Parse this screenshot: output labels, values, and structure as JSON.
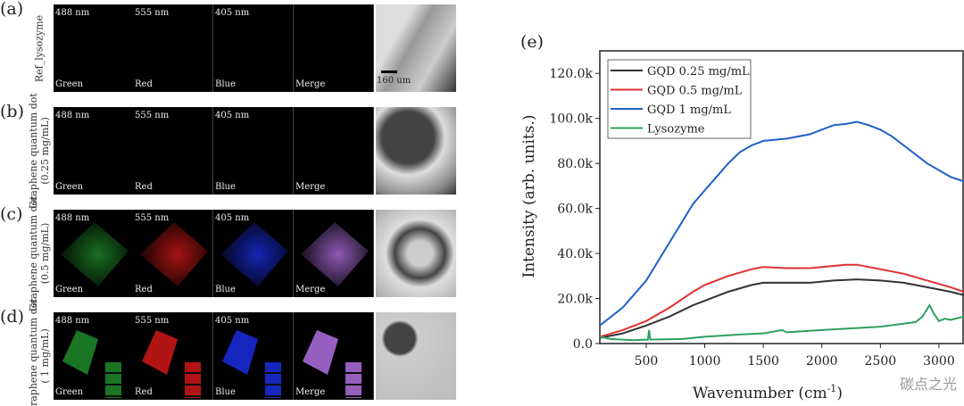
{
  "panels": [
    {
      "letter": "(a)",
      "row_label": [
        "Ref_lysozyme"
      ],
      "tiles": [
        {
          "top": "488 nm",
          "bottom": "Green"
        },
        {
          "top": "555 nm",
          "bottom": "Red"
        },
        {
          "top": "405 nm",
          "bottom": "Blue"
        },
        {
          "top": "",
          "bottom": "Merge"
        }
      ],
      "scale_bar": "160 um",
      "intensity": 0
    },
    {
      "letter": "(b)",
      "row_label": [
        "Graphene quantum dot",
        "(0.25 mg/mL)"
      ],
      "tiles": [
        {
          "top": "488 nm",
          "bottom": "Green"
        },
        {
          "top": "555 nm",
          "bottom": "Red"
        },
        {
          "top": "405 nm",
          "bottom": "Blue"
        },
        {
          "top": "",
          "bottom": "Merge"
        }
      ],
      "intensity": 0
    },
    {
      "letter": "(c)",
      "row_label": [
        "Graphene quantum dot",
        "(0.5 mg/mL)"
      ],
      "tiles": [
        {
          "top": "488 nm",
          "bottom": "Green"
        },
        {
          "top": "555 nm",
          "bottom": "Red"
        },
        {
          "top": "405 nm",
          "bottom": "Blue"
        },
        {
          "top": "",
          "bottom": "Merge"
        }
      ],
      "intensity": 0.5
    },
    {
      "letter": "(d)",
      "row_label": [
        "Graphene quantum dot",
        "( 1 mg/mL)"
      ],
      "tiles": [
        {
          "top": "488 nm",
          "bottom": "Green"
        },
        {
          "top": "555 nm",
          "bottom": "Red"
        },
        {
          "top": "405 nm",
          "bottom": "Blue"
        },
        {
          "top": "",
          "bottom": "Merge"
        }
      ],
      "intensity": 1
    }
  ],
  "channel_colors": [
    "#1f8a2a",
    "#d01818",
    "#1a2ee0",
    "#b070e0"
  ],
  "watermark": "碳点之光",
  "chart_data": {
    "type": "line",
    "panel_letter": "(e)",
    "xlabel": "Wavenumber (cm",
    "xlabel_sup": "-1",
    "xlabel_end": ")",
    "ylabel": "Intensity (arb. units.)",
    "xlim": [
      104,
      3214
    ],
    "ylim": [
      0,
      130000
    ],
    "xticks": [
      500,
      1000,
      1500,
      2000,
      2500,
      3000
    ],
    "xtick_labels": [
      "500",
      "1000",
      "1500",
      "2000",
      "2500",
      "3000"
    ],
    "yticks": [
      0,
      20000,
      40000,
      60000,
      80000,
      100000,
      120000
    ],
    "ytick_labels": [
      "0.0",
      "20.0k",
      "40.0k",
      "60.0k",
      "80.0k",
      "100.0k",
      "120.0k"
    ],
    "legend_position": "top-left",
    "series": [
      {
        "name": "GQD 0.25 mg/mL",
        "color": "#333333",
        "x": [
          104,
          300,
          500,
          700,
          900,
          1000,
          1200,
          1400,
          1500,
          1700,
          1900,
          2100,
          2300,
          2500,
          2700,
          2900,
          3100,
          3214
        ],
        "y": [
          2500,
          4500,
          8000,
          12000,
          17000,
          19000,
          23000,
          26000,
          27000,
          27000,
          27000,
          28000,
          28500,
          28000,
          27000,
          25000,
          23000,
          21500
        ]
      },
      {
        "name": "GQD 0.5 mg/mL",
        "color": "#e03030",
        "x": [
          104,
          300,
          500,
          700,
          900,
          1000,
          1200,
          1400,
          1500,
          1700,
          1900,
          2000,
          2200,
          2300,
          2500,
          2700,
          2900,
          3100,
          3214
        ],
        "y": [
          3000,
          6000,
          10000,
          16000,
          23000,
          26000,
          30000,
          33000,
          34000,
          33500,
          33500,
          34000,
          35000,
          35000,
          33000,
          31000,
          28000,
          25000,
          23000
        ]
      },
      {
        "name": "GQD 1 mg/mL",
        "color": "#1f5fc8",
        "x": [
          104,
          300,
          500,
          700,
          900,
          1000,
          1100,
          1200,
          1300,
          1400,
          1500,
          1700,
          1900,
          2000,
          2100,
          2200,
          2300,
          2400,
          2500,
          2600,
          2700,
          2800,
          2900,
          3000,
          3100,
          3214
        ],
        "y": [
          8000,
          16000,
          28000,
          45000,
          62000,
          68000,
          74000,
          80000,
          85000,
          88000,
          90000,
          91000,
          93000,
          95000,
          97000,
          97500,
          98500,
          97000,
          95000,
          92000,
          88000,
          84000,
          80000,
          77000,
          74000,
          72000
        ]
      },
      {
        "name": "Lysozyme",
        "color": "#2ea060",
        "x": [
          104,
          200,
          400,
          515,
          525,
          535,
          800,
          1000,
          1300,
          1500,
          1660,
          1700,
          2000,
          2500,
          2800,
          2860,
          2920,
          2960,
          3000,
          3050,
          3100,
          3214
        ],
        "y": [
          3000,
          2000,
          1500,
          1800,
          6000,
          1800,
          2000,
          3000,
          4000,
          4500,
          6000,
          5000,
          6000,
          7500,
          9500,
          12000,
          17000,
          13000,
          10000,
          11000,
          10500,
          12000
        ]
      }
    ]
  }
}
